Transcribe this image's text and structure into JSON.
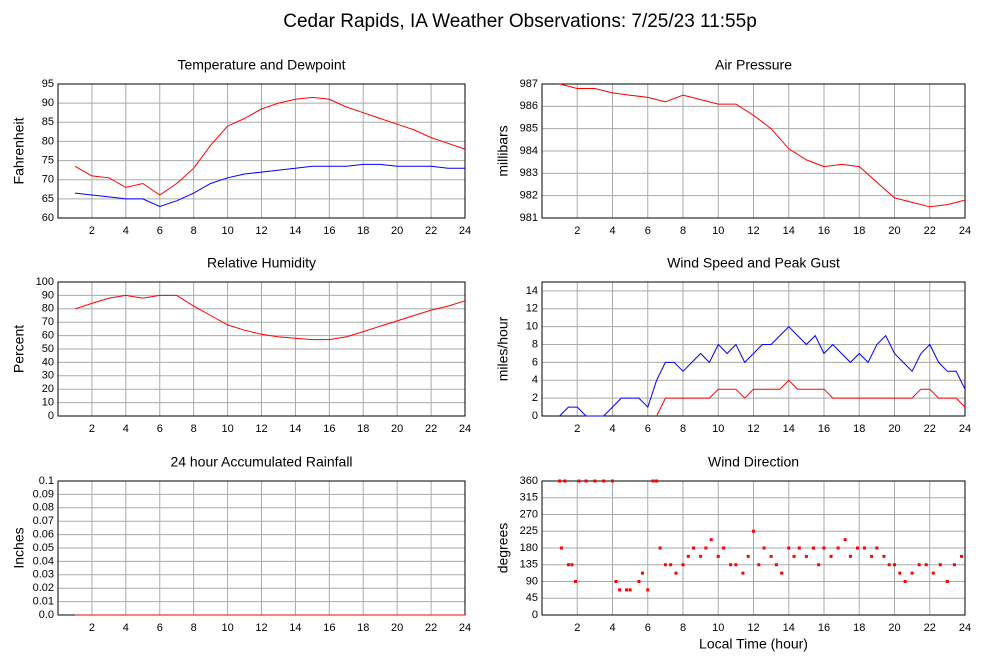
{
  "title": "Cedar Rapids, IA Weather Observations: 7/25/23 11:55p",
  "chart_data": [
    {
      "type": "line",
      "title": "Temperature and Dewpoint",
      "ylabel": "Fahrenheit",
      "grid": true,
      "x": [
        1,
        2,
        3,
        4,
        5,
        6,
        7,
        8,
        9,
        10,
        11,
        12,
        13,
        14,
        15,
        16,
        17,
        18,
        19,
        20,
        21,
        22,
        23,
        24
      ],
      "series": [
        {
          "color": "#ff0000",
          "values": [
            73.5,
            71,
            70.5,
            68,
            69,
            66,
            69,
            73,
            79,
            84,
            86,
            88.5,
            90,
            91,
            91.5,
            91,
            89,
            87.5,
            86,
            84.5,
            83,
            81,
            79.5,
            78
          ]
        },
        {
          "color": "#0000ff",
          "values": [
            66.5,
            66,
            65.5,
            65,
            65,
            63,
            64.5,
            66.5,
            69,
            70.5,
            71.5,
            72,
            72.5,
            73,
            73.5,
            73.5,
            73.5,
            74,
            74,
            73.5,
            73.5,
            73.5,
            73,
            73
          ]
        }
      ],
      "xlim": [
        0,
        24
      ],
      "xticks": [
        2,
        4,
        6,
        8,
        10,
        12,
        14,
        16,
        18,
        20,
        22,
        24
      ],
      "ylim": [
        60,
        95
      ],
      "yticks": [
        60,
        65,
        70,
        75,
        80,
        85,
        90,
        95
      ]
    },
    {
      "type": "line",
      "title": "Air Pressure",
      "ylabel": "millibars",
      "grid": true,
      "x": [
        1,
        2,
        3,
        4,
        5,
        6,
        7,
        8,
        9,
        10,
        11,
        12,
        13,
        14,
        15,
        16,
        17,
        18,
        19,
        20,
        21,
        22,
        23,
        24
      ],
      "series": [
        {
          "color": "#ff0000",
          "values": [
            987,
            986.8,
            986.8,
            986.6,
            986.5,
            986.4,
            986.2,
            986.5,
            986.3,
            986.1,
            986.1,
            985.6,
            985,
            984.1,
            983.6,
            983.3,
            983.4,
            983.3,
            982.6,
            981.9,
            981.7,
            981.5,
            981.6,
            981.8
          ]
        }
      ],
      "xlim": [
        0,
        24
      ],
      "xticks": [
        2,
        4,
        6,
        8,
        10,
        12,
        14,
        16,
        18,
        20,
        22,
        24
      ],
      "ylim": [
        981,
        987
      ],
      "yticks": [
        981,
        982,
        983,
        984,
        985,
        986,
        987
      ]
    },
    {
      "type": "line",
      "title": "Relative Humidity",
      "ylabel": "Percent",
      "grid": true,
      "x": [
        1,
        2,
        3,
        4,
        5,
        6,
        7,
        8,
        9,
        10,
        11,
        12,
        13,
        14,
        15,
        16,
        17,
        18,
        19,
        20,
        21,
        22,
        23,
        24
      ],
      "series": [
        {
          "color": "#ff0000",
          "values": [
            80,
            84,
            88,
            90,
            88,
            90,
            90,
            82,
            75,
            68,
            64,
            61,
            59,
            58,
            57,
            57,
            59,
            63,
            67,
            71,
            75,
            79,
            82,
            86
          ]
        }
      ],
      "xlim": [
        0,
        24
      ],
      "xticks": [
        2,
        4,
        6,
        8,
        10,
        12,
        14,
        16,
        18,
        20,
        22,
        24
      ],
      "ylim": [
        0,
        100
      ],
      "yticks": [
        0,
        10,
        20,
        30,
        40,
        50,
        60,
        70,
        80,
        90,
        100
      ]
    },
    {
      "type": "line",
      "title": "Wind Speed and Peak Gust",
      "ylabel": "miles/hour",
      "grid": true,
      "x": [
        1,
        1.5,
        2,
        2.5,
        3,
        3.5,
        4,
        4.5,
        5,
        5.5,
        6,
        6.5,
        7,
        7.5,
        8,
        8.5,
        9,
        9.5,
        10,
        10.5,
        11,
        11.5,
        12,
        12.5,
        13,
        13.5,
        14,
        14.5,
        15,
        15.5,
        16,
        16.5,
        17,
        17.5,
        18,
        18.5,
        19,
        19.5,
        20,
        20.5,
        21,
        21.5,
        22,
        22.5,
        23,
        23.5,
        24
      ],
      "series": [
        {
          "color": "#0000ff",
          "values": [
            0,
            1,
            1,
            0,
            0,
            0,
            1,
            2,
            2,
            2,
            1,
            4,
            6,
            6,
            5,
            6,
            7,
            6,
            8,
            7,
            8,
            6,
            7,
            8,
            8,
            9,
            10,
            9,
            8,
            9,
            7,
            8,
            7,
            6,
            7,
            6,
            8,
            9,
            7,
            6,
            5,
            7,
            8,
            6,
            5,
            5,
            3
          ]
        },
        {
          "color": "#ff0000",
          "values": [
            null,
            null,
            null,
            null,
            null,
            null,
            null,
            null,
            null,
            null,
            null,
            0,
            2,
            2,
            2,
            2,
            2,
            2,
            3,
            3,
            3,
            2,
            3,
            3,
            3,
            3,
            4,
            3,
            3,
            3,
            3,
            2,
            2,
            2,
            2,
            2,
            2,
            2,
            2,
            2,
            2,
            3,
            3,
            2,
            2,
            2,
            1
          ]
        }
      ],
      "xlim": [
        0,
        24
      ],
      "xticks": [
        2,
        4,
        6,
        8,
        10,
        12,
        14,
        16,
        18,
        20,
        22,
        24
      ],
      "ylim": [
        0,
        15
      ],
      "yticks": [
        0,
        2,
        4,
        6,
        8,
        10,
        12,
        14
      ]
    },
    {
      "type": "line",
      "title": "24 hour Accumulated Rainfall",
      "ylabel": "Inches",
      "grid": true,
      "x": [
        1,
        24
      ],
      "series": [
        {
          "color": "#ff0000",
          "values": [
            0,
            0
          ]
        }
      ],
      "xlim": [
        0,
        24
      ],
      "xticks": [
        2,
        4,
        6,
        8,
        10,
        12,
        14,
        16,
        18,
        20,
        22,
        24
      ],
      "ylim": [
        0,
        0.1
      ],
      "yticks": [
        {
          "value": 0,
          "label": "0.0"
        },
        0.01,
        0.02,
        0.03,
        0.04,
        0.05,
        0.06,
        0.07,
        0.08,
        0.09,
        0.1
      ]
    },
    {
      "type": "scatter",
      "title": "Wind Direction",
      "ylabel": "degrees",
      "xlabel": "Local Time (hour)",
      "grid": true,
      "color": "#ff0000",
      "x": [
        1,
        1.1,
        1.3,
        1.5,
        1.7,
        1.9,
        2.1,
        2.5,
        3,
        3.5,
        4,
        4.2,
        4.4,
        4.8,
        5,
        5.5,
        5.7,
        6,
        6.3,
        6.5,
        6.7,
        7,
        7.3,
        7.6,
        8,
        8.3,
        8.6,
        9,
        9.3,
        9.6,
        10,
        10.3,
        10.7,
        11,
        11.4,
        11.7,
        12,
        12.3,
        12.6,
        13,
        13.3,
        13.6,
        14,
        14.3,
        14.6,
        15,
        15.4,
        15.7,
        16,
        16.4,
        16.8,
        17.2,
        17.5,
        17.9,
        18.3,
        18.7,
        19,
        19.4,
        19.7,
        20,
        20.3,
        20.6,
        21,
        21.4,
        21.8,
        22.2,
        22.6,
        23,
        23.4,
        23.8
      ],
      "values": [
        360,
        180,
        360,
        135,
        135,
        90,
        360,
        360,
        360,
        360,
        360,
        90,
        67.5,
        67.5,
        67.5,
        90,
        112.5,
        67.5,
        360,
        360,
        180,
        135,
        135,
        112.5,
        135,
        157.5,
        180,
        157.5,
        180,
        202.5,
        157.5,
        180,
        135,
        135,
        112.5,
        157.5,
        225,
        135,
        180,
        157.5,
        135,
        112.5,
        180,
        157.5,
        180,
        157.5,
        180,
        135,
        180,
        157.5,
        180,
        202.5,
        157.5,
        180,
        180,
        157.5,
        180,
        157.5,
        135,
        135,
        112.5,
        90,
        112.5,
        135,
        135,
        112.5,
        135,
        90,
        135,
        157.5
      ],
      "xlim": [
        0,
        24
      ],
      "xticks": [
        2,
        4,
        6,
        8,
        10,
        12,
        14,
        16,
        18,
        20,
        22,
        24
      ],
      "ylim": [
        0,
        360
      ],
      "yticks": [
        0,
        45,
        90,
        135,
        180,
        225,
        270,
        315,
        360
      ]
    }
  ]
}
